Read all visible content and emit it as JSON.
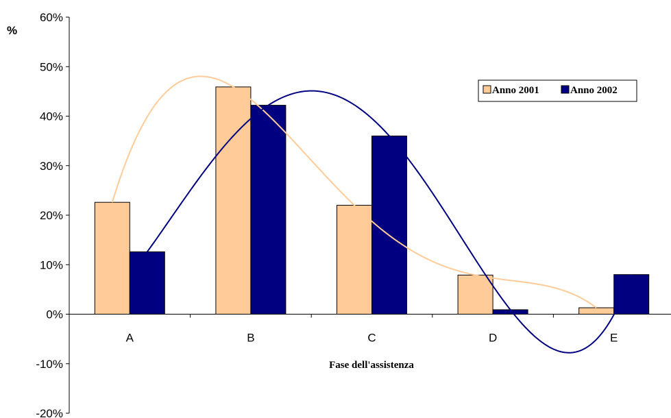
{
  "chart_data": {
    "type": "bar",
    "categories": [
      "A",
      "B",
      "C",
      "D",
      "E"
    ],
    "series": [
      {
        "name": "Anno 2001",
        "values": [
          22.6,
          45.9,
          22.0,
          7.9,
          1.3
        ],
        "color": "#FFCC99",
        "trend_color": "#FFCC99"
      },
      {
        "name": "Anno 2002",
        "values": [
          12.6,
          42.2,
          36.0,
          0.9,
          8.0
        ],
        "color": "#000080",
        "trend_color": "#000080"
      }
    ],
    "trendline": "polynomial",
    "title": "",
    "xlabel": "Fase dell'assistenza",
    "ylabel": "%",
    "ylim": [
      -20,
      60
    ],
    "ytick_step": 10,
    "ytick_labels": [
      "-20%",
      "-10%",
      "0%",
      "10%",
      "20%",
      "30%",
      "40%",
      "50%",
      "60%"
    ],
    "legend_position": "top-right",
    "grid": false
  }
}
